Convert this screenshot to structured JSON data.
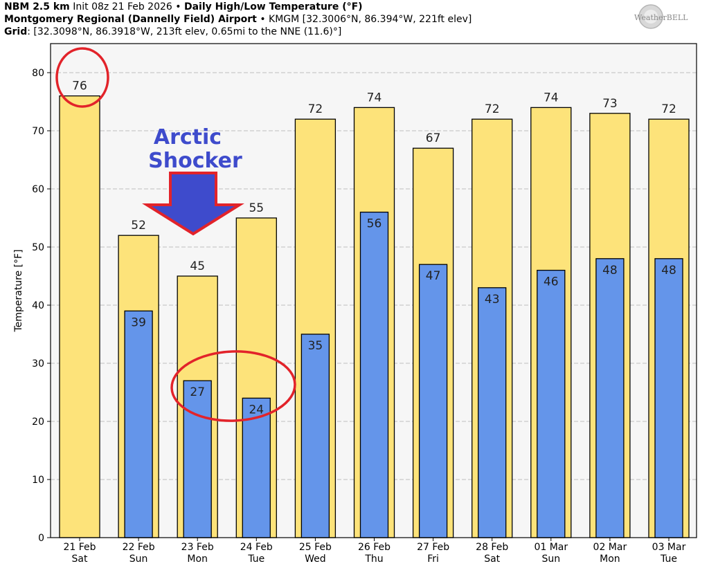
{
  "header": {
    "line1": {
      "model": "NBM 2.5 km",
      "init": "Init 08z 21 Feb 2026",
      "sep": "•",
      "product": "Daily High/Low Temperature (°F)"
    },
    "line2": {
      "station": "Montgomery Regional (Dannelly Field) Airport",
      "sep": "•",
      "details": "KMGM [32.3006°N, 86.394°W, 221ft elev]"
    },
    "line3": {
      "label": "Grid",
      "details": ": [32.3098°N, 86.3918°W, 213ft elev, 0.65mi to the NNE (11.6)°]"
    }
  },
  "logo": {
    "text": "WeatherBELL"
  },
  "annotation": {
    "line1": "Arctic",
    "line2": "Shocker"
  },
  "chart_data": {
    "type": "bar",
    "categories": [
      "21 Feb\nSat",
      "22 Feb\nSun",
      "23 Feb\nMon",
      "24 Feb\nTue",
      "25 Feb\nWed",
      "26 Feb\nThu",
      "27 Feb\nFri",
      "28 Feb\nSat",
      "01 Mar\nSun",
      "02 Mar\nMon",
      "03 Mar\nTue"
    ],
    "series": [
      {
        "values": [
          76,
          52,
          45,
          55,
          72,
          74,
          67,
          72,
          74,
          73,
          72
        ],
        "color": "#fde37a"
      },
      {
        "values": [
          null,
          39,
          27,
          24,
          35,
          56,
          47,
          43,
          46,
          48,
          48
        ],
        "color": "#6495ea"
      }
    ],
    "ylabel": "Temperature [°F]",
    "ylim": [
      0,
      85
    ],
    "yticks": [
      0,
      10,
      20,
      30,
      40,
      50,
      60,
      70,
      80
    ],
    "grid": true,
    "plot_background": "#f6f6f6",
    "highlight_color": "#e2232a",
    "arrow_color": "#3e4bcc"
  }
}
